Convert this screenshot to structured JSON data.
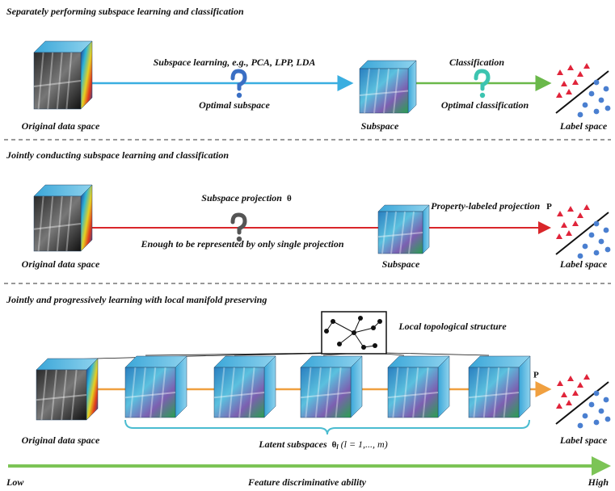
{
  "panels": [
    {
      "title": "Separately performing subspace learning and classification",
      "source": "Original data space",
      "step1": "Subspace learning, e.g., PCA, LPP, LDA",
      "step1_note": "Optimal subspace",
      "middle": "Subspace",
      "step2": "Classification",
      "step2_note": "Optimal classification",
      "target": "Label space"
    },
    {
      "title": "Jointly conducting subspace learning and classification",
      "source": "Original data space",
      "step1": "Subspace projection",
      "step1_symbol": "θ",
      "step1_note": "Enough to be represented by only single projection",
      "middle": "Subspace",
      "step2": "Property-labeled projection",
      "step2_symbol": "P",
      "target": "Label space"
    },
    {
      "title": "Jointly and progressively learning with local manifold preserving",
      "source": "Original data space",
      "structure": "Local topological structure",
      "latent": "Latent subspaces",
      "latent_symbol": "θ",
      "latent_index": "l",
      "latent_range": "(l = 1,..., m)",
      "step2_symbol": "P",
      "target": "Label space"
    }
  ],
  "axis": {
    "low": "Low",
    "label": "Feature discriminative ability",
    "high": "High"
  }
}
